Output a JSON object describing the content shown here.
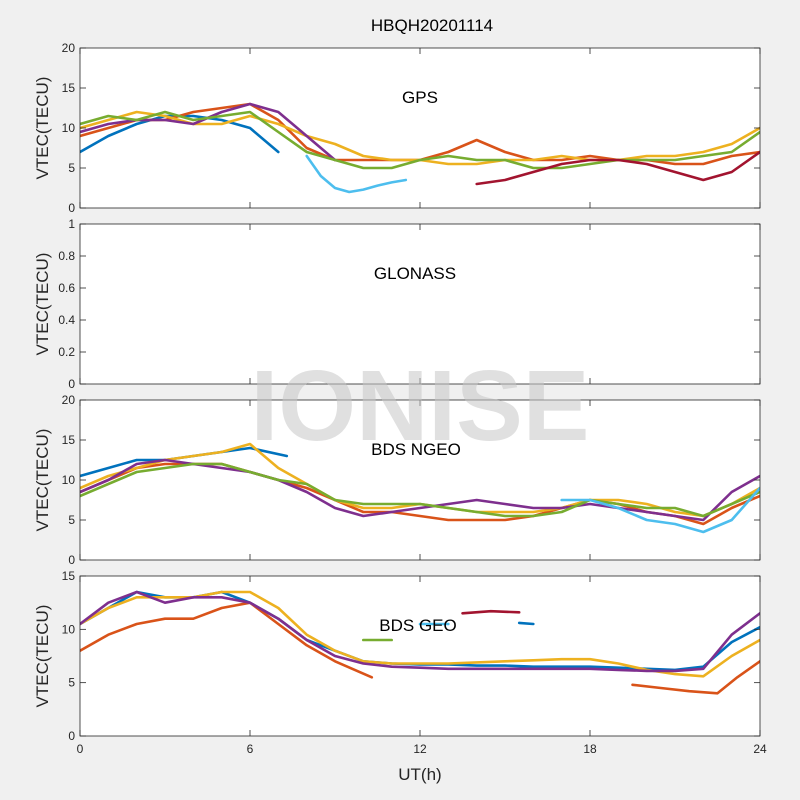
{
  "figure_title": "HBQH20201114",
  "xlabel": "UT(h)",
  "watermark": "IONISE",
  "colors": [
    "#0072BD",
    "#D95319",
    "#EDB120",
    "#7E2F8E",
    "#77AC30",
    "#4DBEEE",
    "#A2142F"
  ],
  "chart_data": [
    {
      "type": "line",
      "title": "GPS",
      "xlabel": "",
      "ylabel": "VTEC(TECU)",
      "xlim": [
        0,
        24
      ],
      "ylim": [
        0,
        20
      ],
      "xticks": [
        0,
        6,
        12,
        18,
        24
      ],
      "yticks": [
        0,
        5,
        10,
        15,
        20
      ],
      "xtick_labels_visible": false,
      "series": [
        {
          "x": [
            0,
            1,
            2,
            3,
            4,
            5,
            6,
            7
          ],
          "y": [
            7,
            9,
            10.5,
            11.5,
            11.5,
            11,
            10,
            7
          ]
        },
        {
          "x": [
            0,
            1,
            2,
            3,
            4,
            5,
            6,
            7,
            8,
            9,
            10,
            11,
            12,
            13,
            14,
            15,
            16,
            17,
            18,
            19,
            20,
            21,
            22,
            23,
            24
          ],
          "y": [
            9,
            10,
            11,
            11,
            12,
            12.5,
            13,
            11,
            7.5,
            6,
            6,
            6,
            6,
            7,
            8.5,
            7,
            6,
            6,
            6.5,
            6,
            6,
            5.5,
            5.5,
            6.5,
            7
          ]
        },
        {
          "x": [
            0,
            1,
            2,
            3,
            4,
            5,
            6,
            7,
            8,
            9,
            10,
            11,
            12,
            13,
            14,
            15,
            16,
            17,
            18,
            19,
            20,
            21,
            22,
            23,
            24
          ],
          "y": [
            10,
            11,
            12,
            11.5,
            10.5,
            10.5,
            11.5,
            10.5,
            9,
            8,
            6.5,
            6,
            6,
            5.5,
            5.5,
            6,
            6,
            6.5,
            6,
            6,
            6.5,
            6.5,
            7,
            8,
            10
          ]
        },
        {
          "x": [
            0,
            1,
            2,
            3,
            4,
            5,
            6,
            7,
            8,
            9
          ],
          "y": [
            9.5,
            10.5,
            11,
            11,
            10.5,
            12,
            13,
            12,
            9,
            6
          ]
        },
        {
          "x": [
            0,
            1,
            2,
            3,
            4,
            5,
            6,
            7,
            8,
            9,
            10,
            11,
            12,
            13,
            14,
            15,
            16,
            17,
            18,
            19,
            20,
            21,
            22,
            23,
            24
          ],
          "y": [
            10.5,
            11.5,
            11,
            12,
            11,
            11.5,
            12,
            9.5,
            7,
            6,
            5,
            5,
            6,
            6.5,
            6,
            6,
            5,
            5,
            5.5,
            6,
            6,
            6,
            6.5,
            7,
            9.5
          ]
        },
        {
          "x": [
            8,
            8.5,
            9,
            9.5,
            10,
            10.5,
            11,
            11.5
          ],
          "y": [
            6.5,
            4,
            2.5,
            2,
            2.3,
            2.8,
            3.2,
            3.5
          ]
        },
        {
          "x": [
            14,
            15,
            16,
            17,
            18,
            19,
            20,
            21,
            22,
            23,
            24
          ],
          "y": [
            3,
            3.5,
            4.5,
            5.5,
            6,
            6,
            5.5,
            4.5,
            3.5,
            4.5,
            7
          ]
        }
      ]
    },
    {
      "type": "line",
      "title": "GLONASS",
      "xlabel": "",
      "ylabel": "VTEC(TECU)",
      "xlim": [
        0,
        24
      ],
      "ylim": [
        0,
        1
      ],
      "xticks": [
        0,
        6,
        12,
        18,
        24
      ],
      "yticks": [
        0,
        0.2,
        0.4,
        0.6,
        0.8,
        1
      ],
      "xtick_labels_visible": false,
      "series": []
    },
    {
      "type": "line",
      "title": "BDS NGEO",
      "xlabel": "",
      "ylabel": "VTEC(TECU)",
      "xlim": [
        0,
        24
      ],
      "ylim": [
        0,
        20
      ],
      "xticks": [
        0,
        6,
        12,
        18,
        24
      ],
      "yticks": [
        0,
        5,
        10,
        15,
        20
      ],
      "xtick_labels_visible": false,
      "series": [
        {
          "x": [
            0,
            1,
            2,
            3,
            4,
            5,
            6,
            7.3
          ],
          "y": [
            10.5,
            11.5,
            12.5,
            12.5,
            13,
            13.5,
            14,
            13
          ]
        },
        {
          "x": [
            0,
            1,
            2,
            3,
            4,
            5,
            6,
            7,
            8,
            9,
            10,
            11,
            12,
            13,
            14,
            15,
            16,
            17,
            18,
            19,
            20,
            21,
            22,
            23,
            24
          ],
          "y": [
            8.5,
            10,
            11.5,
            12,
            12,
            12,
            11,
            10,
            9,
            7.5,
            6,
            6,
            5.5,
            5,
            5,
            5,
            5.5,
            6.5,
            7.5,
            7,
            6,
            5.5,
            4.5,
            6.5,
            8
          ]
        },
        {
          "x": [
            0,
            1,
            2,
            3,
            4,
            5,
            6,
            7,
            8,
            9,
            10,
            11,
            12,
            13,
            14,
            15,
            16,
            17,
            18,
            19,
            20,
            21,
            22,
            23,
            24
          ],
          "y": [
            9,
            10.5,
            11.5,
            12.5,
            13,
            13.5,
            14.5,
            11.5,
            9.5,
            7.5,
            6.5,
            6.5,
            7,
            6.5,
            6,
            6,
            6,
            6.5,
            7.5,
            7.5,
            7,
            6,
            5.5,
            7,
            9
          ]
        },
        {
          "x": [
            0,
            1,
            2,
            3,
            4,
            5,
            6,
            7,
            8,
            9,
            10,
            11,
            12,
            13,
            14,
            15,
            16,
            17,
            18,
            19,
            20,
            21,
            22,
            23,
            24
          ],
          "y": [
            8.5,
            10,
            12,
            12.5,
            12,
            11.5,
            11,
            10,
            8.5,
            6.5,
            5.5,
            6,
            6.5,
            7,
            7.5,
            7,
            6.5,
            6.5,
            7,
            6.5,
            6,
            5.5,
            5,
            8.5,
            10.5
          ]
        },
        {
          "x": [
            0,
            1,
            2,
            3,
            4,
            5,
            6,
            7,
            8,
            9,
            10,
            11,
            12,
            13,
            14,
            15,
            16,
            17,
            18,
            19,
            20,
            21,
            22,
            23,
            24
          ],
          "y": [
            8,
            9.5,
            11,
            11.5,
            12,
            12,
            11,
            10,
            9.5,
            7.5,
            7,
            7,
            7,
            6.5,
            6,
            5.5,
            5.5,
            6,
            7.5,
            7,
            6.5,
            6.5,
            5.5,
            7,
            8.5
          ]
        },
        {
          "x": [
            17,
            18,
            19,
            20,
            21,
            22,
            23,
            24
          ],
          "y": [
            7.5,
            7.5,
            6.5,
            5,
            4.5,
            3.5,
            5,
            9
          ]
        }
      ]
    },
    {
      "type": "line",
      "title": "BDS GEO",
      "xlabel": "UT(h)",
      "ylabel": "VTEC(TECU)",
      "xlim": [
        0,
        24
      ],
      "ylim": [
        0,
        15
      ],
      "xticks": [
        0,
        6,
        12,
        18,
        24
      ],
      "yticks": [
        0,
        5,
        10,
        15
      ],
      "xtick_labels_visible": true,
      "series": [
        {
          "x": [
            0,
            1,
            2,
            3,
            4,
            5,
            6,
            7,
            8,
            9,
            10,
            11,
            12,
            13,
            14,
            15,
            16,
            17,
            18,
            19,
            20,
            21,
            22,
            23,
            24
          ],
          "y": [
            10.5,
            12,
            13.5,
            13,
            13,
            13.5,
            12.5,
            11,
            9,
            8,
            7,
            6.8,
            6.7,
            6.7,
            6.6,
            6.6,
            6.5,
            6.5,
            6.5,
            6.4,
            6.3,
            6.2,
            6.5,
            8.8,
            10.2
          ]
        },
        {
          "x": [
            0,
            1,
            2,
            3,
            4,
            5,
            6,
            7,
            8,
            9,
            10.3
          ],
          "y": [
            8,
            9.5,
            10.5,
            11,
            11,
            12,
            12.5,
            10.5,
            8.5,
            7,
            5.5
          ]
        },
        {
          "x": [
            0,
            1,
            2,
            3,
            4,
            5,
            6,
            7,
            8,
            9,
            10,
            11,
            12,
            13,
            14,
            15,
            16,
            17,
            18,
            19,
            20,
            21,
            22,
            23,
            24
          ],
          "y": [
            10.5,
            12,
            13,
            13,
            13,
            13.5,
            13.5,
            12,
            9.5,
            8,
            7,
            6.8,
            6.8,
            6.8,
            6.9,
            7,
            7.1,
            7.2,
            7.2,
            6.8,
            6.2,
            5.8,
            5.6,
            7.5,
            9
          ]
        },
        {
          "x": [
            0,
            1,
            2,
            3,
            4,
            5,
            6,
            7,
            8,
            9,
            10,
            11,
            12,
            13,
            14,
            15,
            16,
            17,
            18,
            19,
            20,
            21,
            22,
            23,
            24
          ],
          "y": [
            10.5,
            12.5,
            13.5,
            12.5,
            13,
            13,
            12.5,
            11,
            9,
            7.5,
            6.8,
            6.5,
            6.4,
            6.3,
            6.3,
            6.3,
            6.3,
            6.3,
            6.3,
            6.2,
            6.1,
            6.1,
            6.3,
            9.5,
            11.5
          ]
        },
        {
          "x": [
            10,
            11
          ],
          "y": [
            9,
            9
          ]
        },
        {
          "x": [
            12,
            13
          ],
          "y": [
            10.5,
            10.5
          ]
        },
        {
          "x": [
            13.5,
            14.5,
            15.5
          ],
          "y": [
            11.5,
            11.7,
            11.6
          ]
        },
        {
          "x": [
            15.5,
            16
          ],
          "y": [
            10.6,
            10.5
          ]
        },
        {
          "x": [
            19.5,
            20.5,
            21.5,
            22.5,
            23.2,
            24
          ],
          "y": [
            4.8,
            4.5,
            4.2,
            4,
            5.5,
            7
          ]
        }
      ]
    }
  ]
}
